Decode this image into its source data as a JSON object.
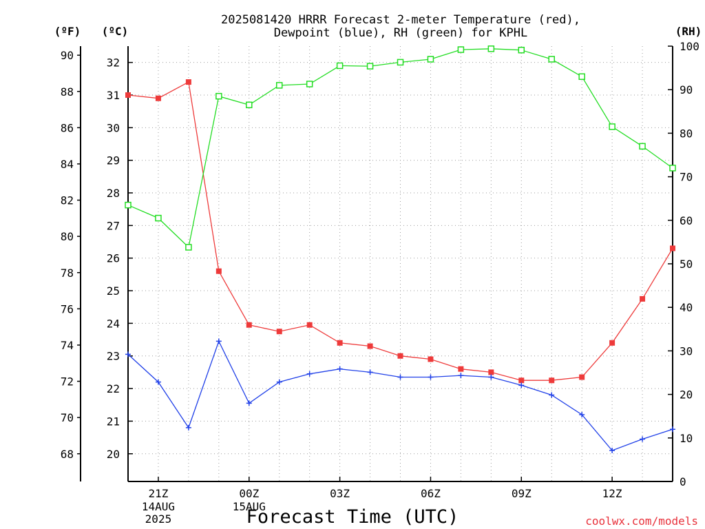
{
  "chart_data": {
    "type": "line",
    "title": [
      "2025081420 HRRR Forecast 2-meter Temperature (red),",
      "Dewpoint (blue), RH (green) for KPHL"
    ],
    "xlabel": "Forecast Time (UTC)",
    "unit_labels": {
      "left_f": "(ºF)",
      "left_c": "(ºC)",
      "right_rh": "(RH)"
    },
    "x_ticks": [
      {
        "label": "21Z",
        "sub": [
          "14AUG",
          "2025"
        ],
        "x": 1
      },
      {
        "label": "00Z",
        "sub": [
          "15AUG"
        ],
        "x": 4
      },
      {
        "label": "03Z",
        "sub": [],
        "x": 7
      },
      {
        "label": "06Z",
        "sub": [],
        "x": 10
      },
      {
        "label": "09Z",
        "sub": [],
        "x": 13
      },
      {
        "label": "12Z",
        "sub": [],
        "x": 16
      }
    ],
    "xlim": [
      0,
      18
    ],
    "yc_lim": [
      19.15,
      32.5
    ],
    "yf_lim": [
      66.47,
      90.5
    ],
    "rh_lim": [
      0,
      100
    ],
    "yc_ticks": [
      20,
      21,
      22,
      23,
      24,
      25,
      26,
      27,
      28,
      29,
      30,
      31,
      32
    ],
    "yf_ticks": [
      68,
      70,
      72,
      74,
      76,
      78,
      80,
      82,
      84,
      86,
      88,
      90
    ],
    "rh_ticks": [
      0,
      10,
      20,
      30,
      40,
      50,
      60,
      70,
      80,
      90,
      100
    ],
    "grid": true,
    "series": [
      {
        "name": "Temperature",
        "color": "#ee3a3a",
        "marker": "filled-square",
        "axis": "C",
        "values": [
          31.0,
          30.9,
          31.4,
          25.6,
          23.95,
          23.75,
          23.95,
          23.4,
          23.3,
          23.0,
          22.9,
          22.6,
          22.5,
          22.25,
          22.25,
          22.35,
          23.4,
          24.75,
          26.3
        ]
      },
      {
        "name": "Dewpoint",
        "color": "#2040e8",
        "marker": "plus",
        "axis": "C",
        "values": [
          23.05,
          22.2,
          20.8,
          23.45,
          21.55,
          22.2,
          22.45,
          22.6,
          22.5,
          22.35,
          22.35,
          22.4,
          22.35,
          22.1,
          21.8,
          21.2,
          20.1,
          20.45,
          20.75
        ]
      },
      {
        "name": "RH",
        "color": "#22dd22",
        "marker": "open-square",
        "axis": "RH",
        "values": [
          63.5,
          60.5,
          53.8,
          88.5,
          86.5,
          91.0,
          91.3,
          95.5,
          95.4,
          96.3,
          97.0,
          99.2,
          99.4,
          99.1,
          97.0,
          93.0,
          81.5,
          77.0,
          72.0
        ]
      }
    ]
  },
  "credit": "coolwx.com/models"
}
